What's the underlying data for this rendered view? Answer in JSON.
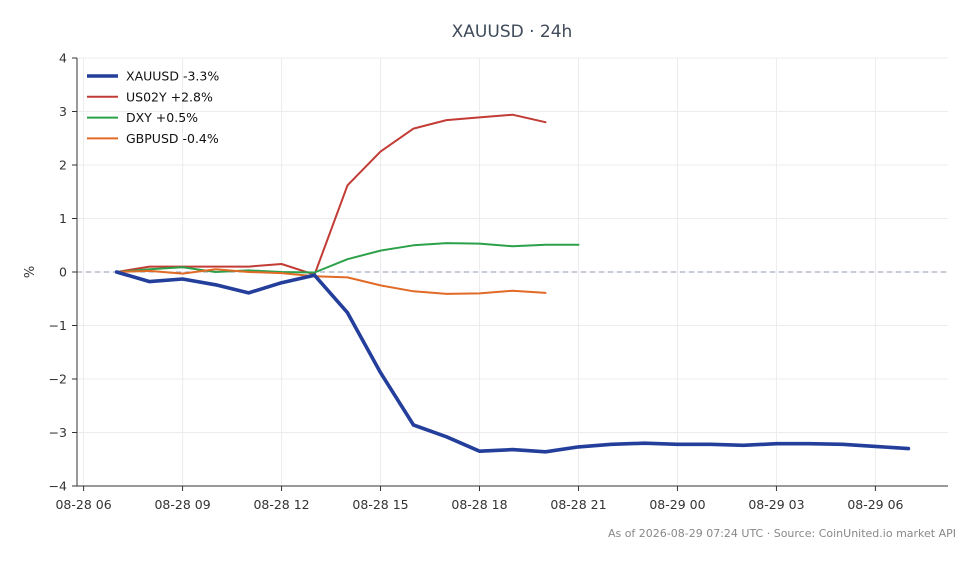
{
  "chart_data": {
    "type": "line",
    "title": "XAUUSD · 24h",
    "ylabel": "%",
    "xlabel": "",
    "ylim": [
      -4,
      4
    ],
    "yticks": [
      4,
      3,
      2,
      1,
      0,
      -1,
      -2,
      -3,
      -4
    ],
    "ytick_labels": [
      "4",
      "3",
      "2",
      "1",
      "0",
      "−1",
      "−2",
      "−3",
      "−4"
    ],
    "x_ticks": [
      {
        "x": 0,
        "label": "08-28 06"
      },
      {
        "x": 3,
        "label": "08-28 09"
      },
      {
        "x": 6,
        "label": "08-28 12"
      },
      {
        "x": 9,
        "label": "08-28 15"
      },
      {
        "x": 12,
        "label": "08-28 18"
      },
      {
        "x": 15,
        "label": "08-28 21"
      },
      {
        "x": 18,
        "label": "08-29 00"
      },
      {
        "x": 21,
        "label": "08-29 03"
      },
      {
        "x": 24,
        "label": "08-29 06"
      }
    ],
    "x_unit": "hours from 08-28 06:00",
    "xlim": [
      -0.2,
      26.2
    ],
    "grid": true,
    "zero_line": true,
    "legend_position": "top-left",
    "series": [
      {
        "name": "XAUUSD -3.3%",
        "color": "#243f9b",
        "emphasis": true,
        "x": [
          1,
          2,
          3,
          4,
          5,
          6,
          7,
          8,
          9,
          10,
          11,
          12,
          13,
          14,
          15,
          16,
          17,
          18,
          19,
          20,
          21,
          22,
          23,
          24,
          25
        ],
        "values": [
          0.0,
          -0.18,
          -0.13,
          -0.24,
          -0.39,
          -0.2,
          -0.06,
          -0.76,
          -1.88,
          -2.86,
          -3.08,
          -3.35,
          -3.32,
          -3.36,
          -3.27,
          -3.22,
          -3.2,
          -3.22,
          -3.22,
          -3.24,
          -3.21,
          -3.21,
          -3.22,
          -3.26,
          -3.3
        ]
      },
      {
        "name": "US02Y +2.8%",
        "color": "#c23b34",
        "emphasis": false,
        "x": [
          1,
          2,
          3,
          4,
          5,
          6,
          7,
          8,
          9,
          10,
          11,
          12,
          13,
          14
        ],
        "values": [
          0.0,
          0.1,
          0.1,
          0.1,
          0.1,
          0.15,
          -0.05,
          1.62,
          2.25,
          2.68,
          2.84,
          2.89,
          2.94,
          2.8
        ]
      },
      {
        "name": "DXY +0.5%",
        "color": "#2ca14a",
        "emphasis": false,
        "x": [
          1,
          2,
          3,
          4,
          5,
          6,
          7,
          8,
          9,
          10,
          11,
          12,
          13,
          14,
          15
        ],
        "values": [
          0.0,
          0.05,
          0.09,
          0.0,
          0.03,
          0.0,
          -0.01,
          0.24,
          0.4,
          0.5,
          0.54,
          0.53,
          0.48,
          0.51,
          0.51
        ]
      },
      {
        "name": "GBPUSD -0.4%",
        "color": "#e06a26",
        "emphasis": false,
        "x": [
          1,
          2,
          3,
          4,
          5,
          6,
          7,
          8,
          9,
          10,
          11,
          12,
          13,
          14
        ],
        "values": [
          0.0,
          0.02,
          -0.03,
          0.05,
          0.0,
          -0.02,
          -0.08,
          -0.1,
          -0.25,
          -0.36,
          -0.41,
          -0.4,
          -0.35,
          -0.39
        ]
      }
    ],
    "footer": "As of 2026-08-29 07:24 UTC · Source: CoinUnited.io market API"
  }
}
